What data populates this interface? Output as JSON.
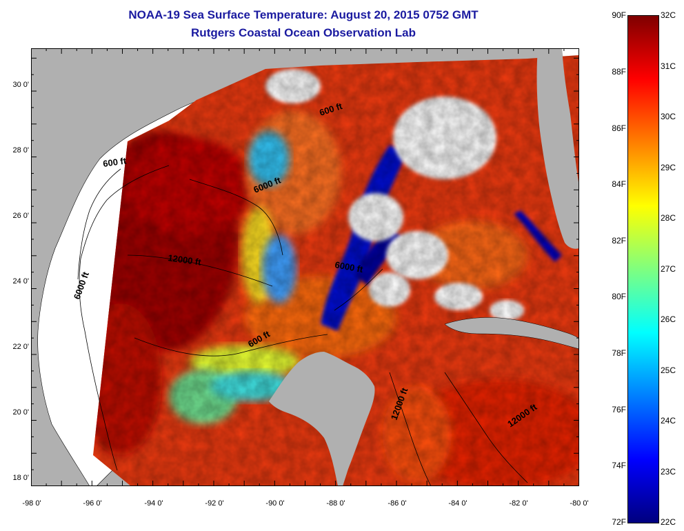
{
  "title": "NOAA-19 Sea Surface Temperature:  August 20, 2015 0752 GMT",
  "subtitle": "Rutgers Coastal Ocean Observation Lab",
  "axes": {
    "lon_labels": [
      "-98 0'",
      "-96 0'",
      "-94 0'",
      "-92 0'",
      "-90 0'",
      "-88 0'",
      "-86 0'",
      "-84 0'",
      "-82 0'",
      "-80 0'"
    ],
    "lat_labels": [
      "30 0'",
      "28 0'",
      "26 0'",
      "24 0'",
      "22 0'",
      "20 0'",
      "18 0'"
    ],
    "lon_range": [
      -98,
      -80
    ],
    "lat_range": [
      18,
      31.3
    ]
  },
  "colorbar": {
    "f_labels": [
      "90F",
      "88F",
      "86F",
      "84F",
      "82F",
      "80F",
      "78F",
      "76F",
      "74F",
      "72F"
    ],
    "c_labels": [
      "32C",
      "31C",
      "30C",
      "29C",
      "28C",
      "27C",
      "26C",
      "25C",
      "24C",
      "23C",
      "22C"
    ],
    "f_range": [
      72,
      90
    ],
    "c_range": [
      22,
      32
    ],
    "colors": [
      "#00007f",
      "#0000ff",
      "#007fff",
      "#00ffff",
      "#7fff7f",
      "#ffff00",
      "#ff7f00",
      "#ff0000",
      "#7f0000"
    ]
  },
  "contour_labels": [
    "600 ft",
    "600 ft",
    "600 ft",
    "6000 ft",
    "6000 ft",
    "6000 ft",
    "12000 ft",
    "12000 ft",
    "12000 ft"
  ],
  "colors": {
    "land": "#b0b0b0",
    "cloud": "#ffffff",
    "title": "#1a1aa0"
  }
}
